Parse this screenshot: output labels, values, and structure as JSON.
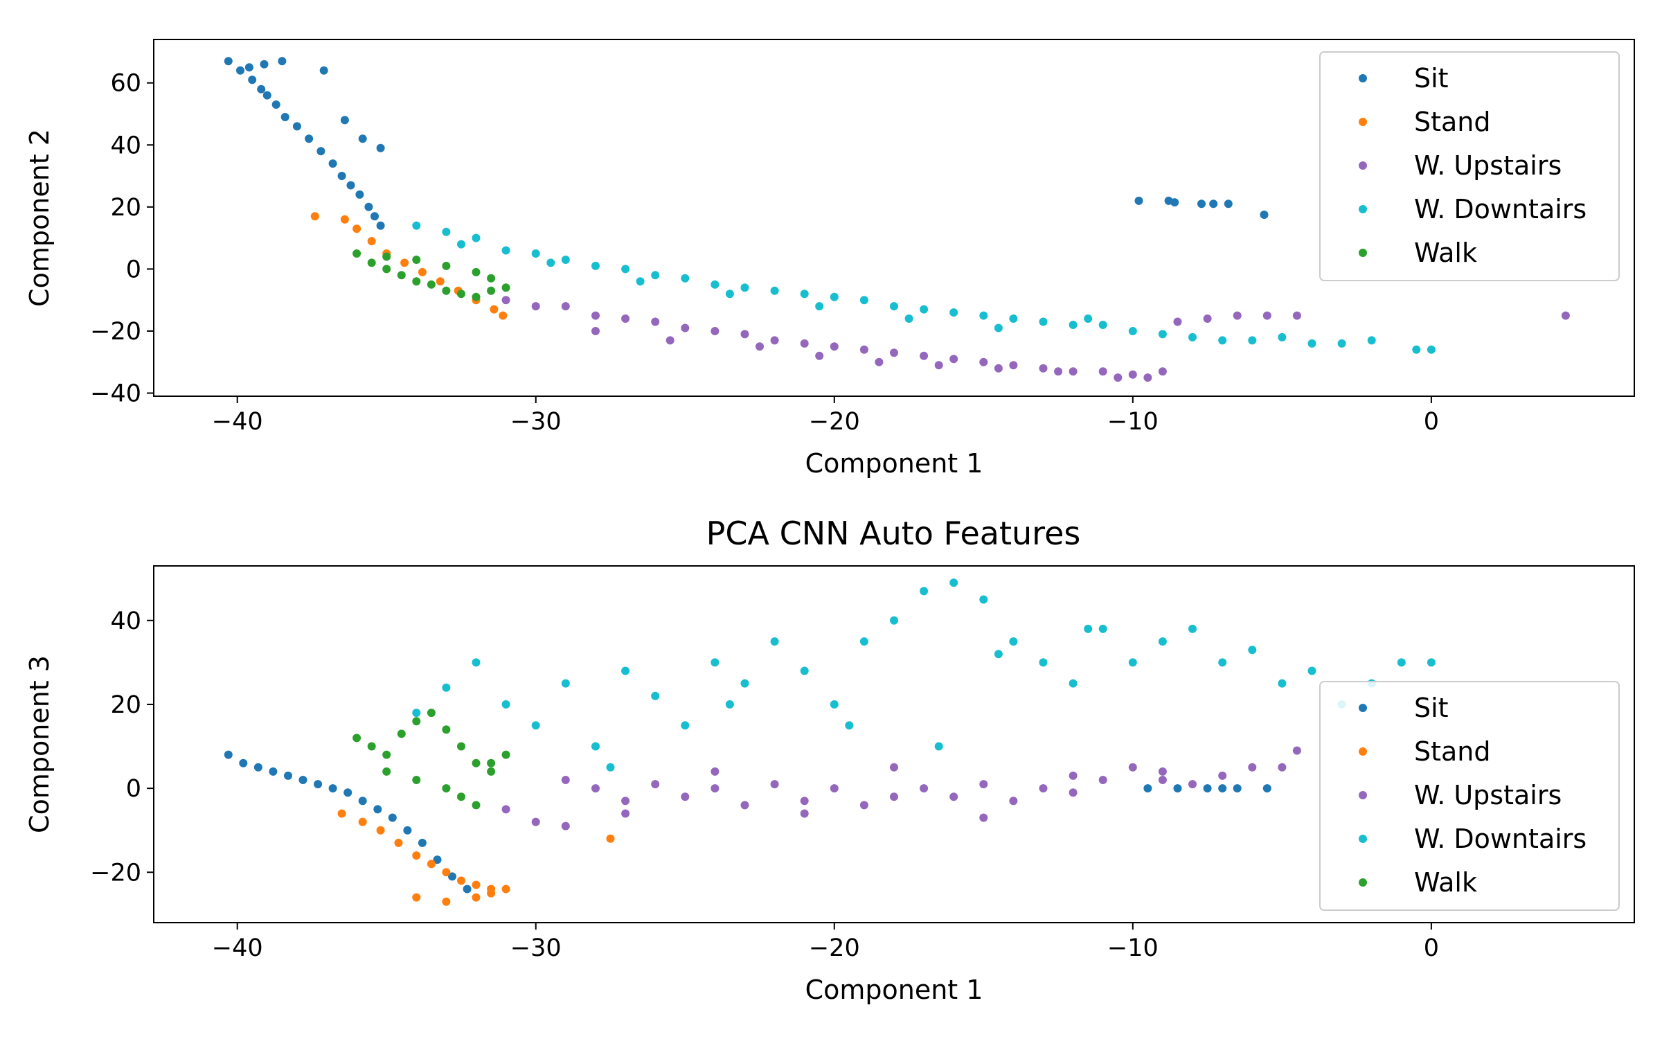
{
  "figure": {
    "title": "PCA CNN Auto Features"
  },
  "legend_entries": [
    "Sit",
    "Stand",
    "W. Upstairs",
    "W. Downtairs",
    "Walk"
  ],
  "series_colors": {
    "Sit": "#1f77b4",
    "Stand": "#ff7f0e",
    "W. Upstairs": "#9467bd",
    "W. Downtairs": "#17becf",
    "Walk": "#2ca02c"
  },
  "chart_data": [
    {
      "type": "scatter",
      "title": "",
      "xlabel": "Component 1",
      "ylabel": "Component 2",
      "xlim": [
        -42.8,
        6.8
      ],
      "ylim": [
        -41,
        74
      ],
      "xticks": [
        -40,
        -30,
        -20,
        -10,
        0
      ],
      "xtick_labels": [
        "−40",
        "−30",
        "−20",
        "−10",
        "0"
      ],
      "yticks": [
        -40,
        -20,
        0,
        20,
        40,
        60
      ],
      "ytick_labels": [
        "−40",
        "−20",
        "0",
        "20",
        "40",
        "60"
      ],
      "grid": false,
      "legend": "upper right",
      "series": [
        {
          "name": "Sit",
          "x": [
            -40.3,
            -39.9,
            -39.5,
            -39.2,
            -39.0,
            -38.7,
            -38.4,
            -38.0,
            -37.6,
            -37.2,
            -36.8,
            -36.5,
            -36.2,
            -35.9,
            -35.6,
            -35.4,
            -35.2,
            -37.1,
            -36.4,
            -35.8,
            -35.2,
            -39.6,
            -39.1,
            -38.5,
            -9.8,
            -8.8,
            -8.6,
            -7.7,
            -7.3,
            -6.8,
            -5.6
          ],
          "y": [
            67,
            64,
            61,
            58,
            56,
            53,
            49,
            46,
            42,
            38,
            34,
            30,
            27,
            24,
            20,
            17,
            14,
            64,
            48,
            42,
            39,
            65,
            66,
            67,
            22,
            22,
            21.5,
            21,
            21,
            21,
            17.5
          ]
        },
        {
          "name": "Stand",
          "x": [
            -37.4,
            -36.4,
            -36.0,
            -35.5,
            -35.0,
            -34.4,
            -33.8,
            -33.2,
            -32.6,
            -32.0,
            -31.4,
            -31.1
          ],
          "y": [
            17,
            16,
            13,
            9,
            5,
            2,
            -1,
            -4,
            -7,
            -10,
            -13,
            -15
          ]
        },
        {
          "name": "W. Upstairs",
          "x": [
            -31.0,
            -30.0,
            -29.0,
            -28.0,
            -27.0,
            -26.0,
            -25.0,
            -24.0,
            -23.0,
            -22.0,
            -21.0,
            -20.0,
            -19.0,
            -18.0,
            -17.0,
            -16.0,
            -15.0,
            -14.0,
            -13.0,
            -12.0,
            -11.0,
            -10.0,
            -9.0,
            -8.5,
            -7.5,
            -6.5,
            -5.5,
            -4.5,
            4.5,
            -28.0,
            -25.5,
            -22.5,
            -20.5,
            -18.5,
            -16.5,
            -14.5,
            -12.5,
            -10.5,
            -9.5
          ],
          "y": [
            -10,
            -12,
            -12,
            -15,
            -16,
            -17,
            -19,
            -20,
            -21,
            -23,
            -24,
            -25,
            -26,
            -27,
            -28,
            -29,
            -30,
            -31,
            -32,
            -33,
            -33,
            -34,
            -33,
            -17,
            -16,
            -15,
            -15,
            -15,
            -15,
            -20,
            -23,
            -25,
            -28,
            -30,
            -31,
            -32,
            -33,
            -35,
            -35
          ]
        },
        {
          "name": "W. Downtairs",
          "x": [
            -34.0,
            -33.0,
            -32.0,
            -31.0,
            -30.0,
            -29.0,
            -28.0,
            -27.0,
            -26.0,
            -25.0,
            -24.0,
            -23.0,
            -22.0,
            -21.0,
            -20.0,
            -19.0,
            -18.0,
            -17.0,
            -16.0,
            -15.0,
            -14.0,
            -13.0,
            -12.0,
            -11.0,
            -10.0,
            -9.0,
            -8.0,
            -7.0,
            -6.0,
            -5.0,
            -4.0,
            -3.0,
            -2.0,
            -0.5,
            0.0,
            -32.5,
            -29.5,
            -26.5,
            -23.5,
            -20.5,
            -17.5,
            -14.5,
            -11.5
          ],
          "y": [
            14,
            12,
            10,
            6,
            5,
            3,
            1,
            0,
            -2,
            -3,
            -5,
            -6,
            -7,
            -8,
            -9,
            -10,
            -12,
            -13,
            -14,
            -15,
            -16,
            -17,
            -18,
            -18,
            -20,
            -21,
            -22,
            -23,
            -23,
            -22,
            -24,
            -24,
            -23,
            -26,
            -26,
            8,
            2,
            -4,
            -8,
            -12,
            -16,
            -19,
            -16
          ]
        },
        {
          "name": "Walk",
          "x": [
            -36.0,
            -35.5,
            -35.0,
            -34.5,
            -34.0,
            -33.5,
            -33.0,
            -32.5,
            -32.0,
            -31.5,
            -31.0,
            -35.0,
            -34.0,
            -33.0,
            -32.0,
            -31.5
          ],
          "y": [
            5,
            2,
            0,
            -2,
            -4,
            -5,
            -7,
            -8,
            -9,
            -7,
            -6,
            4,
            3,
            1,
            -1,
            -3
          ]
        }
      ]
    },
    {
      "type": "scatter",
      "title": "PCA CNN Auto Features",
      "xlabel": "Component 1",
      "ylabel": "Component 3",
      "xlim": [
        -42.8,
        6.8
      ],
      "ylim": [
        -32,
        53
      ],
      "xticks": [
        -40,
        -30,
        -20,
        -10,
        0
      ],
      "xtick_labels": [
        "−40",
        "−30",
        "−20",
        "−10",
        "0"
      ],
      "yticks": [
        -20,
        0,
        20,
        40
      ],
      "ytick_labels": [
        "−20",
        "0",
        "20",
        "40"
      ],
      "grid": false,
      "legend": "lower right",
      "series": [
        {
          "name": "Sit",
          "x": [
            -40.3,
            -39.8,
            -39.3,
            -38.8,
            -38.3,
            -37.8,
            -37.3,
            -36.8,
            -36.3,
            -35.8,
            -35.3,
            -34.8,
            -34.3,
            -33.8,
            -33.3,
            -32.8,
            -32.3,
            -9.5,
            -8.5,
            -7.5,
            -7.0,
            -6.5,
            -5.5
          ],
          "y": [
            8,
            6,
            5,
            4,
            3,
            2,
            1,
            0,
            -1,
            -3,
            -5,
            -7,
            -10,
            -13,
            -17,
            -21,
            -24,
            0,
            0,
            0,
            0,
            0,
            0
          ]
        },
        {
          "name": "Stand",
          "x": [
            -36.5,
            -35.8,
            -35.2,
            -34.6,
            -34.0,
            -33.5,
            -33.0,
            -32.5,
            -32.0,
            -31.5,
            -31.0,
            -34.0,
            -33.0,
            -32.0,
            -31.5,
            -27.5
          ],
          "y": [
            -6,
            -8,
            -10,
            -13,
            -16,
            -18,
            -20,
            -22,
            -23,
            -24,
            -24,
            -26,
            -27,
            -26,
            -25,
            -12
          ]
        },
        {
          "name": "W. Upstairs",
          "x": [
            -31.0,
            -30.0,
            -29.0,
            -28.0,
            -27.0,
            -26.0,
            -25.0,
            -24.0,
            -23.0,
            -22.0,
            -21.0,
            -20.0,
            -19.0,
            -18.0,
            -17.0,
            -16.0,
            -15.0,
            -14.0,
            -13.0,
            -12.0,
            -11.0,
            -10.0,
            -9.0,
            -8.0,
            -7.0,
            -6.0,
            -5.0,
            -4.5,
            -29.0,
            -27.0,
            -24.0,
            -21.0,
            -18.0,
            -15.0,
            -12.0,
            -9.0
          ],
          "y": [
            -5,
            -8,
            -9,
            0,
            -3,
            1,
            -2,
            0,
            -4,
            1,
            -3,
            0,
            -4,
            -2,
            0,
            -2,
            1,
            -3,
            0,
            -1,
            2,
            5,
            4,
            1,
            3,
            5,
            5,
            9,
            2,
            -6,
            4,
            -6,
            5,
            -7,
            3,
            2
          ]
        },
        {
          "name": "W. Downtairs",
          "x": [
            -34.0,
            -33.0,
            -32.0,
            -31.0,
            -30.0,
            -29.0,
            -28.0,
            -27.0,
            -26.0,
            -25.0,
            -24.0,
            -23.0,
            -22.0,
            -21.0,
            -20.0,
            -19.0,
            -18.0,
            -17.0,
            -16.0,
            -15.0,
            -14.0,
            -13.0,
            -12.0,
            -11.0,
            -10.0,
            -9.0,
            -8.0,
            -7.0,
            -6.0,
            -5.0,
            -4.0,
            -3.0,
            -2.0,
            -1.0,
            0.0,
            -27.5,
            -23.5,
            -19.5,
            -16.5,
            -14.5,
            -11.5
          ],
          "y": [
            18,
            24,
            30,
            20,
            15,
            25,
            10,
            28,
            22,
            15,
            30,
            25,
            35,
            28,
            20,
            35,
            40,
            47,
            49,
            45,
            35,
            30,
            25,
            38,
            30,
            35,
            38,
            30,
            33,
            25,
            28,
            20,
            25,
            30,
            30,
            5,
            20,
            15,
            10,
            32,
            38
          ]
        },
        {
          "name": "Walk",
          "x": [
            -36.0,
            -35.5,
            -35.0,
            -34.5,
            -34.0,
            -33.5,
            -33.0,
            -32.5,
            -32.0,
            -31.5,
            -31.0,
            -35.0,
            -34.0,
            -33.0,
            -32.5,
            -32.0,
            -31.5
          ],
          "y": [
            12,
            10,
            8,
            13,
            16,
            18,
            14,
            10,
            6,
            4,
            8,
            4,
            2,
            0,
            -2,
            -4,
            6
          ]
        }
      ]
    }
  ]
}
